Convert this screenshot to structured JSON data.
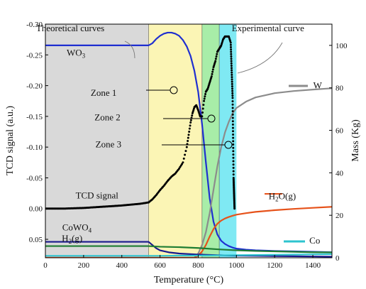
{
  "chart_data": {
    "type": "line",
    "xlabel": "Temperature (°C)",
    "ylabel_left": "TCD signal (a.u.)",
    "ylabel_right": "Mass (Kg)",
    "xlim": [
      0,
      1500
    ],
    "ylim_left": [
      0.08,
      -0.3
    ],
    "ylim_right": [
      0,
      110
    ],
    "x_ticks": [
      0,
      200,
      400,
      600,
      800,
      1000,
      1200,
      1400
    ],
    "y_left_ticks": [
      -0.3,
      -0.25,
      -0.2,
      -0.15,
      -0.1,
      -0.05,
      0.0,
      0.05
    ],
    "y_left_tick_labels": [
      "-0.30",
      "-0.25",
      "-0.20",
      "-0.15",
      "-0.10",
      "-0.05",
      "0.00",
      "0.05"
    ],
    "y_right_ticks": [
      0,
      20,
      40,
      60,
      80,
      100
    ],
    "zones": [
      {
        "label": "",
        "x0": 0,
        "x1": 540,
        "color": "#d9d9d9"
      },
      {
        "label": "Zone 1",
        "x0": 540,
        "x1": 820,
        "color": "#fbf5b5"
      },
      {
        "label": "Zone 2",
        "x0": 820,
        "x1": 910,
        "color": "#a8eda8"
      },
      {
        "label": "Zone 3",
        "x0": 910,
        "x1": 1000,
        "color": "#7fe9f3"
      }
    ],
    "series": [
      {
        "name": "WO3",
        "axis": "right",
        "color": "#1f2fd0",
        "style": "solid",
        "x": [
          0,
          540,
          560,
          580,
          600,
          620,
          640,
          660,
          680,
          700,
          720,
          740,
          760,
          780,
          800,
          820,
          840,
          860,
          880,
          900,
          920,
          940,
          960,
          980,
          1000,
          1050,
          1100,
          1200,
          1300,
          1400,
          1500
        ],
        "y": [
          100,
          100,
          101,
          103,
          104.5,
          105.5,
          106,
          106,
          105.5,
          104.5,
          102.5,
          99.5,
          95,
          88,
          78,
          63,
          45,
          28,
          17,
          11,
          8,
          6.5,
          5.5,
          4.8,
          4.3,
          3.8,
          3.5,
          3.2,
          3.0,
          2.8,
          2.6
        ]
      },
      {
        "name": "W",
        "axis": "right",
        "color": "#8c8c8c",
        "style": "solid",
        "x": [
          0,
          780,
          800,
          820,
          840,
          860,
          880,
          900,
          920,
          940,
          960,
          980,
          1000,
          1050,
          1100,
          1200,
          1300,
          1400,
          1500
        ],
        "y": [
          0,
          0,
          2,
          6,
          12,
          21,
          32,
          43,
          52,
          59,
          64,
          68,
          70.5,
          73.5,
          75.5,
          77.5,
          78.5,
          79.2,
          79.8
        ]
      },
      {
        "name": "H2O(g)",
        "axis": "right",
        "color": "#e6521a",
        "style": "solid",
        "x": [
          0,
          780,
          800,
          820,
          840,
          860,
          880,
          900,
          920,
          940,
          960,
          980,
          1000,
          1050,
          1100,
          1200,
          1300,
          1400,
          1500
        ],
        "y": [
          0,
          0,
          1,
          3,
          6,
          10,
          13.5,
          16,
          17.5,
          18.5,
          19.2,
          19.8,
          20.3,
          21,
          21.6,
          22.4,
          23.0,
          23.5,
          24.0
        ]
      },
      {
        "name": "CoWO4",
        "axis": "right",
        "color": "#1a1a8c",
        "style": "solid",
        "x": [
          0,
          540,
          560,
          580,
          600,
          650,
          700,
          800,
          900,
          1000,
          1100,
          1200,
          1300,
          1400,
          1500
        ],
        "y": [
          7.5,
          7.5,
          6,
          4.5,
          3.5,
          2.5,
          2,
          1.5,
          1.2,
          1.0,
          0.9,
          0.8,
          0.7,
          0.6,
          0.5
        ]
      },
      {
        "name": "H2(g)",
        "axis": "right",
        "color": "#1e7d32",
        "style": "solid",
        "x": [
          0,
          540,
          600,
          700,
          800,
          900,
          1000,
          1100,
          1200,
          1300,
          1400,
          1500
        ],
        "y": [
          5.5,
          5.5,
          5.2,
          5.0,
          4.6,
          4.0,
          3.5,
          3.2,
          3.0,
          2.8,
          2.6,
          2.5
        ]
      },
      {
        "name": "Co",
        "axis": "right",
        "color": "#2ec4cf",
        "style": "solid",
        "x": [
          0,
          600,
          700,
          800,
          900,
          1000,
          1100,
          1200,
          1300,
          1400,
          1500
        ],
        "y": [
          0.9,
          0.9,
          1.0,
          1.0,
          1.1,
          1.2,
          1.3,
          1.4,
          1.5,
          1.6,
          1.7
        ]
      },
      {
        "name": "TCD signal",
        "axis": "left",
        "color": "#000000",
        "style": "dots",
        "x": [
          0,
          100,
          200,
          300,
          400,
          500,
          540,
          560,
          580,
          600,
          620,
          640,
          660,
          680,
          700,
          720,
          740,
          750,
          760,
          770,
          780,
          790,
          800,
          810,
          820,
          830,
          840,
          850,
          860,
          870,
          880,
          890,
          900,
          910,
          920,
          930,
          940,
          950,
          960,
          970,
          980,
          985,
          990
        ],
        "y": [
          0.0,
          0.0,
          -0.001,
          -0.003,
          -0.005,
          -0.008,
          -0.01,
          -0.015,
          -0.022,
          -0.03,
          -0.037,
          -0.045,
          -0.052,
          -0.057,
          -0.065,
          -0.075,
          -0.1,
          -0.12,
          -0.14,
          -0.155,
          -0.165,
          -0.168,
          -0.16,
          -0.15,
          -0.15,
          -0.175,
          -0.19,
          -0.195,
          -0.205,
          -0.215,
          -0.23,
          -0.24,
          -0.255,
          -0.26,
          -0.265,
          -0.275,
          -0.28,
          -0.28,
          -0.28,
          -0.27,
          -0.18,
          -0.05,
          0.0
        ]
      }
    ],
    "annotations": [
      {
        "text": "Theoretical curves",
        "x": 130,
        "y": -0.293
      },
      {
        "text": "Experimental curve",
        "x": 1165,
        "y": -0.293
      },
      {
        "text": "WO3",
        "x": 160,
        "y": -0.253
      },
      {
        "text": "Zone 1",
        "x": 305,
        "y": -0.188
      },
      {
        "text": "Zone 2",
        "x": 325,
        "y": -0.148
      },
      {
        "text": "Zone 3",
        "x": 330,
        "y": -0.104
      },
      {
        "text": "TCD signal",
        "x": 270,
        "y": -0.021
      },
      {
        "text": "W",
        "x": 1425,
        "y": -0.2
      },
      {
        "text": "H2O(g)",
        "x": 1240,
        "y": -0.02
      },
      {
        "text": "CoWO4",
        "x": 165,
        "y": 0.031
      },
      {
        "text": "H2(g)",
        "x": 140,
        "y": 0.049
      },
      {
        "text": "Co",
        "x": 1410,
        "y": 0.052
      }
    ]
  }
}
